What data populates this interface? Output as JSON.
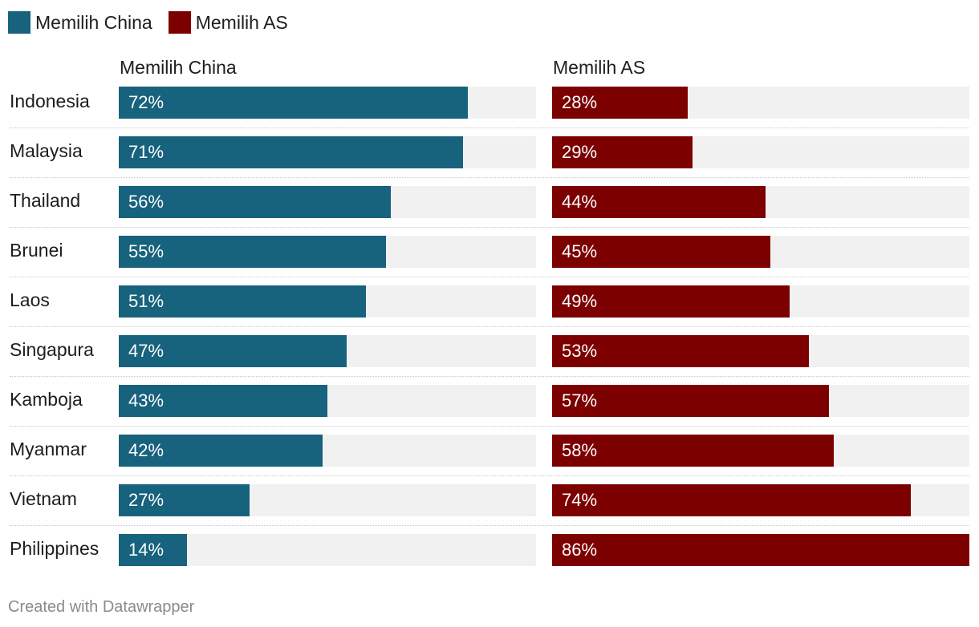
{
  "legend": [
    {
      "label": "Memilih China",
      "color": "#17627d"
    },
    {
      "label": "Memilih AS",
      "color": "#7c0000"
    }
  ],
  "chart_data": {
    "type": "bar",
    "orientation": "horizontal",
    "layout": "small-multiples",
    "categories": [
      "Indonesia",
      "Malaysia",
      "Thailand",
      "Brunei",
      "Laos",
      "Singapura",
      "Kamboja",
      "Myanmar",
      "Vietnam",
      "Philippines"
    ],
    "series": [
      {
        "name": "Memilih China",
        "color": "#17627d",
        "values": [
          72,
          71,
          56,
          55,
          51,
          47,
          43,
          42,
          27,
          14
        ]
      },
      {
        "name": "Memilih AS",
        "color": "#7c0000",
        "values": [
          28,
          29,
          44,
          45,
          49,
          53,
          57,
          58,
          74,
          86
        ]
      }
    ],
    "value_suffix": "%",
    "xlim": [
      0,
      86
    ],
    "legend_position": "top-left",
    "title": "",
    "xlabel": "",
    "ylabel": ""
  },
  "footer": {
    "credit": "Created with Datawrapper"
  }
}
